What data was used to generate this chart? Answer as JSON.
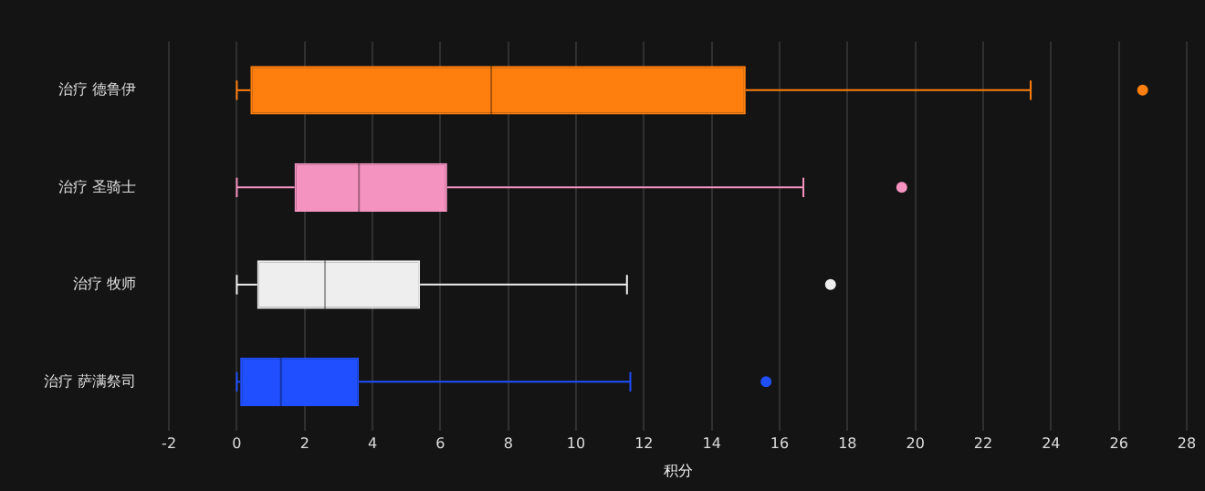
{
  "chart_data": {
    "type": "box",
    "orientation": "horizontal",
    "xlabel": "积分",
    "categories": [
      "治疗 德鲁伊",
      "治疗 圣骑士",
      "治疗 牧师",
      "治疗 萨满祭司"
    ],
    "boxes": [
      {
        "low": 0,
        "q1": 0.4,
        "median": 7.5,
        "q3": 15,
        "high": 23.4,
        "outliers": [
          26.7
        ]
      },
      {
        "low": 0,
        "q1": 1.7,
        "median": 3.6,
        "q3": 6.2,
        "high": 16.7,
        "outliers": [
          19.6
        ]
      },
      {
        "low": 0,
        "q1": 0.6,
        "median": 2.6,
        "q3": 5.4,
        "high": 11.5,
        "outliers": [
          17.5
        ]
      },
      {
        "low": 0,
        "q1": 0.1,
        "median": 1.3,
        "q3": 3.6,
        "high": 11.6,
        "outliers": [
          15.6
        ]
      }
    ],
    "colors": [
      "#ff7f0e",
      "#f593c0",
      "#eeeeee",
      "#1f4fff"
    ],
    "xlim": [
      -2,
      28
    ],
    "xticks": [
      -2,
      0,
      2,
      4,
      6,
      8,
      10,
      12,
      14,
      16,
      18,
      20,
      22,
      24,
      26,
      28
    ],
    "grid": "x"
  }
}
